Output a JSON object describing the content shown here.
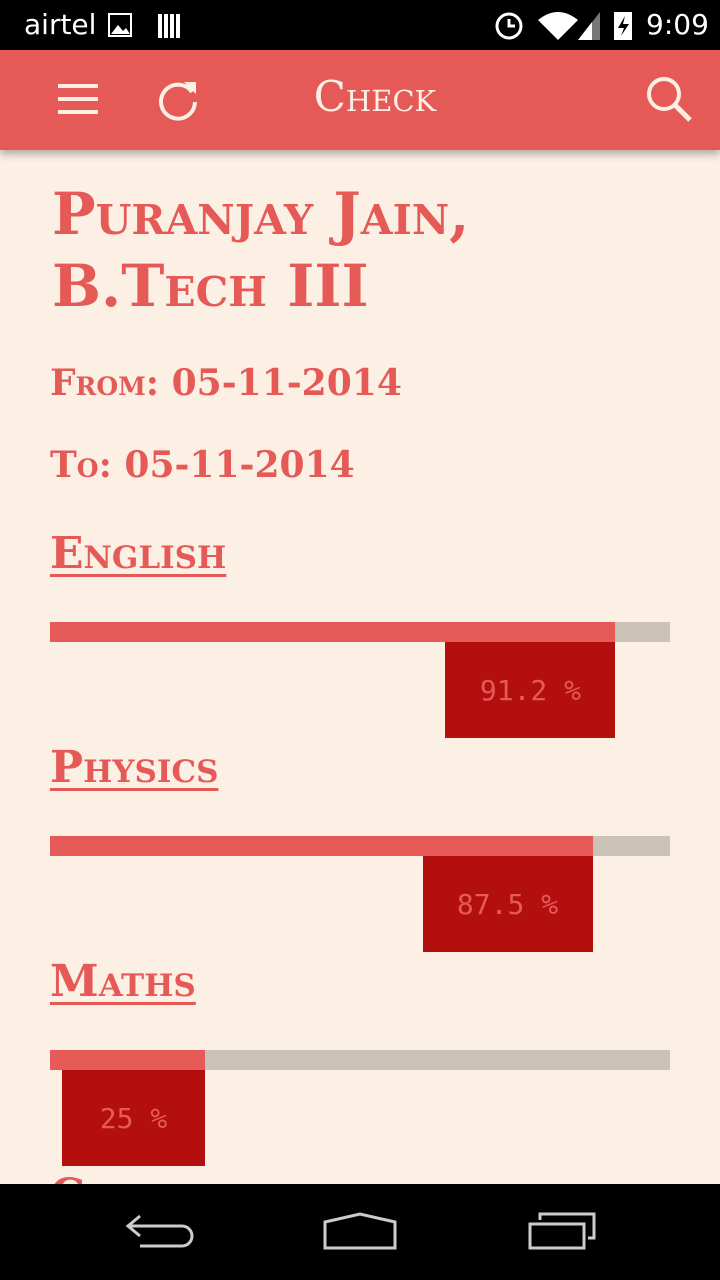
{
  "status_bar": {
    "carrier": "airtel",
    "time": "9:09"
  },
  "app_bar": {
    "title": "Check"
  },
  "student": {
    "name": "Puranjay Jain, B.Tech III",
    "from": "From: 05-11-2014",
    "to": "To: 05-11-2014"
  },
  "subjects": [
    {
      "name": "English",
      "value": 91.2,
      "value_label": "91.2 %"
    },
    {
      "name": "Physics",
      "value": 87.5,
      "value_label": "87.5 %"
    },
    {
      "name": "Maths",
      "value": 25,
      "value_label": "25 %"
    }
  ],
  "clipped_heading": "Chemistry"
}
